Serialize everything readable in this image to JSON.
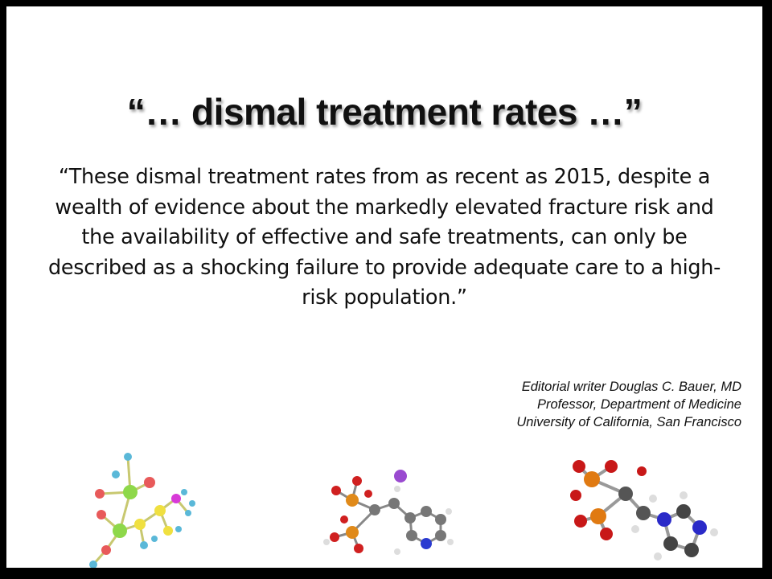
{
  "slide": {
    "title": "“… dismal treatment rates …”",
    "quote": "“These dismal treatment rates from as recent as 2015, despite a wealth of evidence about the markedly elevated fracture risk and the availability of effective and safe treatments, can only be described as a shocking failure to provide adequate care to a high-risk population.”",
    "attribution": {
      "line1": "Editorial writer Douglas C. Bauer, MD",
      "line2": "Professor, Department of Medicine",
      "line3": "University of California, San Francisco"
    }
  },
  "images": {
    "molecule_1": "bisphosphonate-ball-and-stick-color",
    "molecule_2": "risedronate-sodium-ball-and-stick",
    "molecule_3": "zoledronic-acid-ball-and-stick"
  }
}
